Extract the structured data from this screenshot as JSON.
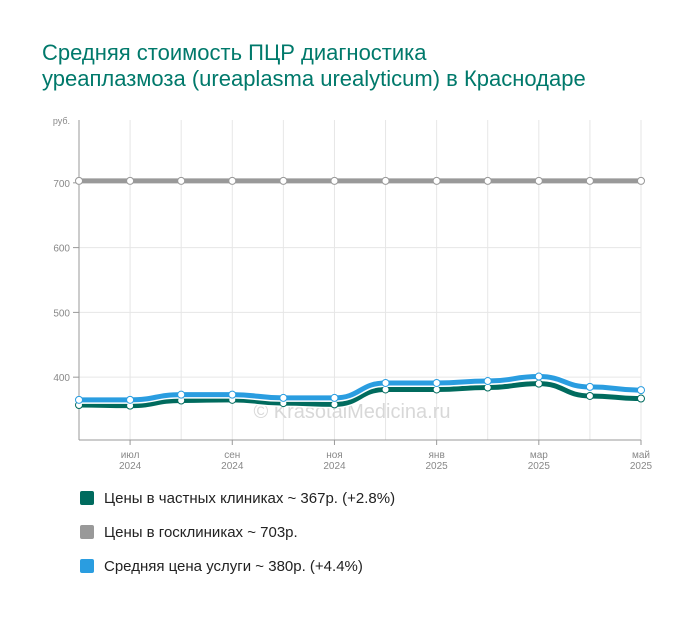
{
  "chart_data": {
    "type": "line",
    "title": "Средняя стоимость ПЦР диагностика\nуреаплазмоза (ureaplasma urealyticum) в Краснодаре",
    "y_label": "руб.",
    "watermark": "© KrasotaiMedicina.ru",
    "categories": [
      null,
      "июл 2024",
      null,
      "сен 2024",
      null,
      "ноя 2024",
      null,
      "янв 2025",
      null,
      "мар 2025",
      null,
      "май 2025"
    ],
    "ylim": [
      303,
      797
    ],
    "yticks": [
      400,
      500,
      600,
      700
    ],
    "grid": true,
    "series": [
      {
        "name": "Цены в госклиниках ~ 703р.",
        "color": "#999999",
        "values": [
          703,
          703,
          703,
          703,
          703,
          703,
          703,
          703,
          703,
          703,
          703,
          703
        ]
      },
      {
        "name": "Цены в частных клиниках ~ 367р. (+2.8%)",
        "color": "#006b5e",
        "values": [
          357,
          356,
          364,
          365,
          360,
          358,
          381,
          381,
          384,
          390,
          371,
          367
        ]
      },
      {
        "name": "Средняя цена услуги ~ 380р. (+4.4%)",
        "color": "#2a9de0",
        "values": [
          365,
          365,
          373,
          373,
          368,
          368,
          391,
          391,
          394,
          401,
          385,
          380
        ]
      }
    ],
    "legend_order": [
      1,
      0,
      2
    ]
  }
}
